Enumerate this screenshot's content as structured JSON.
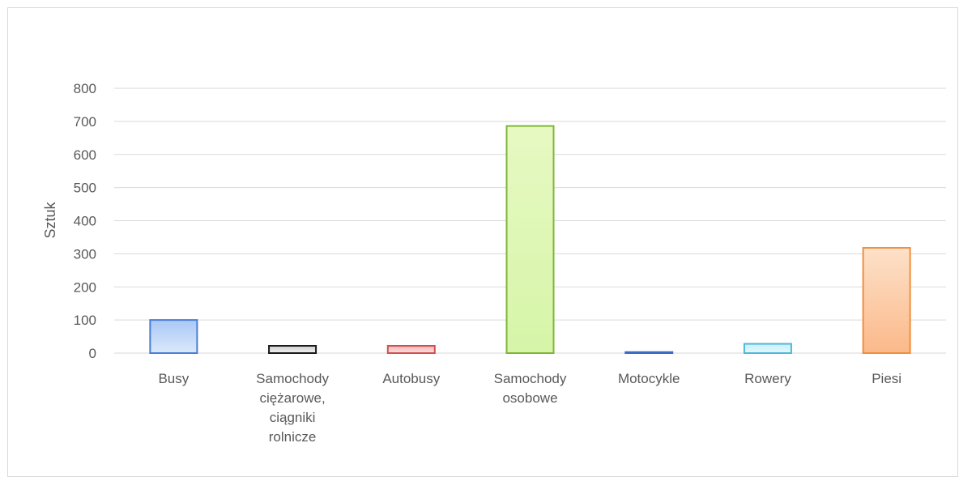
{
  "chart_data": {
    "type": "bar",
    "title": "",
    "xlabel": "",
    "ylabel": "Sztuk",
    "ylim": [
      0,
      800
    ],
    "yticks": [
      0,
      100,
      200,
      300,
      400,
      500,
      600,
      700,
      800
    ],
    "grid": true,
    "legend": "none",
    "categories": [
      [
        "Busy"
      ],
      [
        "Samochody",
        "ciężarowe,",
        "ciągniki",
        "rolnicze"
      ],
      [
        "Autobusy"
      ],
      [
        "Samochody",
        "osobowe"
      ],
      [
        "Motocykle"
      ],
      [
        "Rowery"
      ],
      [
        "Piesi"
      ]
    ],
    "values": [
      100,
      22,
      22,
      686,
      3,
      28,
      318
    ],
    "colors": [
      {
        "fill_top": "#a9c8f5",
        "fill_bottom": "#dbe8fb",
        "stroke": "#4a7fd6"
      },
      {
        "fill_top": "#cfcfcf",
        "fill_bottom": "#f2f2f2",
        "stroke": "#1a1a1a"
      },
      {
        "fill_top": "#f3b3b3",
        "fill_bottom": "#fbe2e2",
        "stroke": "#d05050"
      },
      {
        "fill_top": "#e6f9c2",
        "fill_bottom": "#d6f5a8",
        "stroke": "#7fb53a"
      },
      {
        "fill_top": "#b7ccf0",
        "fill_bottom": "#dde7f8",
        "stroke": "#3a6cc6"
      },
      {
        "fill_top": "#c9f0fb",
        "fill_bottom": "#e3f7fd",
        "stroke": "#4fb8d8"
      },
      {
        "fill_top": "#fde1c9",
        "fill_bottom": "#fbb98a",
        "stroke": "#f08f3e"
      }
    ],
    "gridline_color": "#d9d9d9",
    "text_color": "#595959"
  }
}
